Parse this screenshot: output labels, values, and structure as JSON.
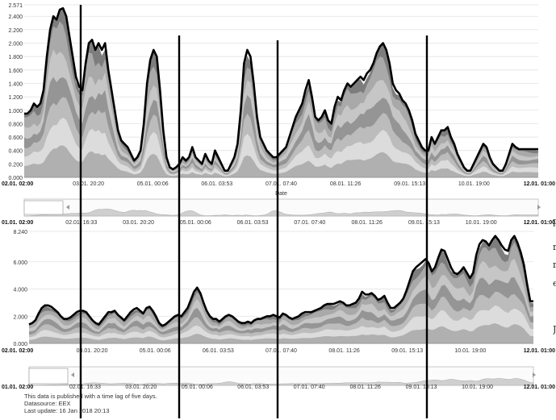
{
  "chart_data": [
    {
      "type": "area",
      "title": "",
      "xlabel": "Date",
      "ylabel": "",
      "ylim": [
        0,
        2.571
      ],
      "y_ticks": [
        "2.571",
        "2.400",
        "2.200",
        "2.000",
        "1.800",
        "1.600",
        "1.400",
        "1.200",
        "1.000",
        "0.800",
        "0.600",
        "0.400",
        "0.200",
        "0.000"
      ],
      "x_ticks": [
        "02.01. 02:00",
        "03.01. 20:20",
        "05.01. 00:06",
        "06.01. 03:53",
        "07.01. 07:40",
        "08.01. 11:26",
        "09.01. 15:13",
        "10.01. 19:00",
        "12.01. 01:00"
      ],
      "x_ticks_bold": [
        "02.01. 02:00",
        "12.01. 01:00"
      ],
      "navigator_ticks": [
        "01.01. 02:00",
        "02.01. 16:33",
        "03.01. 20:20",
        "05.01. 00:06",
        "06.01. 03:53",
        "07.01. 07:40",
        "08.01. 11:26",
        "09.01. 15:13",
        "10.01. 19:00",
        "12.01. 01:00"
      ],
      "x": [
        0,
        1,
        2,
        3,
        4,
        5,
        6,
        7,
        8,
        9,
        10,
        11,
        12,
        13,
        14,
        15,
        16,
        17,
        18,
        19,
        20,
        21,
        22,
        23,
        24,
        25,
        26,
        27,
        28,
        29,
        30,
        31,
        32,
        33,
        34,
        35,
        36,
        37,
        38,
        39,
        40,
        41,
        42,
        43,
        44,
        45,
        46,
        47,
        48,
        49,
        50,
        51,
        52,
        53,
        54,
        55,
        56,
        57,
        58,
        59,
        60,
        61,
        62,
        63,
        64,
        65,
        66,
        67,
        68,
        69,
        70,
        71,
        72,
        73,
        74,
        75,
        76,
        77,
        78,
        79,
        80,
        81,
        82,
        83,
        84,
        85,
        86,
        87,
        88,
        89,
        90,
        91,
        92,
        93,
        94,
        95,
        96,
        97,
        98,
        99,
        100,
        101,
        102,
        103,
        104,
        105,
        106,
        107,
        108,
        109,
        110,
        111,
        112,
        113,
        114,
        115,
        116,
        117,
        118,
        119,
        120,
        121,
        122,
        123,
        124,
        125,
        126,
        127,
        128,
        129,
        130,
        131,
        132,
        133,
        134,
        135,
        136,
        137,
        138,
        139,
        140,
        141,
        142,
        143,
        144,
        145,
        146,
        147,
        148,
        149,
        150,
        151,
        152,
        153,
        154,
        155,
        156,
        157,
        158,
        159
      ],
      "values": [
        0.95,
        0.95,
        1.0,
        1.1,
        1.05,
        1.1,
        1.3,
        1.8,
        2.2,
        2.4,
        2.35,
        2.5,
        2.52,
        2.4,
        2.1,
        1.8,
        1.5,
        1.35,
        1.3,
        1.7,
        2.0,
        2.05,
        1.9,
        2.0,
        1.9,
        2.0,
        1.6,
        1.3,
        1.0,
        0.7,
        0.55,
        0.5,
        0.45,
        0.35,
        0.25,
        0.3,
        0.4,
        0.8,
        1.4,
        1.75,
        1.9,
        1.8,
        1.3,
        0.7,
        0.3,
        0.15,
        0.12,
        0.15,
        0.2,
        0.3,
        0.25,
        0.3,
        0.45,
        0.3,
        0.25,
        0.2,
        0.35,
        0.25,
        0.2,
        0.4,
        0.3,
        0.2,
        0.1,
        0.1,
        0.2,
        0.3,
        0.5,
        1.0,
        1.7,
        1.9,
        1.8,
        1.4,
        0.9,
        0.6,
        0.5,
        0.4,
        0.35,
        0.3,
        0.3,
        0.35,
        0.4,
        0.45,
        0.6,
        0.75,
        0.9,
        1.0,
        1.1,
        1.3,
        1.45,
        1.2,
        0.9,
        0.85,
        0.9,
        1.0,
        0.85,
        0.8,
        1.05,
        1.2,
        1.15,
        1.3,
        1.4,
        1.35,
        1.4,
        1.45,
        1.5,
        1.45,
        1.55,
        1.6,
        1.7,
        1.85,
        1.95,
        2.0,
        1.9,
        1.7,
        1.4,
        1.3,
        1.25,
        1.15,
        1.1,
        1.0,
        0.85,
        0.65,
        0.55,
        0.45,
        0.4,
        0.4,
        0.6,
        0.5,
        0.6,
        0.7,
        0.7,
        0.75,
        0.6,
        0.5,
        0.35,
        0.25,
        0.15,
        0.1,
        0.1,
        0.2,
        0.3,
        0.4,
        0.5,
        0.45,
        0.3,
        0.2,
        0.15,
        0.1,
        0.1,
        0.2,
        0.35,
        0.5,
        0.45,
        0.42,
        0.42,
        0.42,
        0.42,
        0.42,
        0.42,
        0.42
      ],
      "markers": [
        "02.01. 16:33",
        "05.01. 00:06",
        "07.01. 07:40",
        "09.01. 15:13"
      ]
    },
    {
      "type": "area",
      "title": "",
      "xlabel": "",
      "ylabel": "",
      "ylim": [
        0,
        8.24
      ],
      "y_ticks": [
        "8.240",
        "6.000",
        "4.000",
        "2.000",
        "0.000"
      ],
      "x_ticks": [
        "02.01. 02:00",
        "03.01. 20:20",
        "05.01. 00:06",
        "06.01. 03:53",
        "07.01. 07:40",
        "08.01. 11:26",
        "09.01. 15:13",
        "10.01. 19:00",
        "12.01. 01:00"
      ],
      "x_ticks_bold": [
        "02.01. 02:00",
        "12.01. 01:00"
      ],
      "navigator_ticks": [
        "01.01. 02:00",
        "02.01. 16:33",
        "03.01. 20:20",
        "05.01. 00:06",
        "06.01. 03:53",
        "07.01. 07:40",
        "08.01. 11:26",
        "09.01. 15:13",
        "10.01. 19:00",
        "12.01. 01:00"
      ],
      "x": [
        0,
        1,
        2,
        3,
        4,
        5,
        6,
        7,
        8,
        9,
        10,
        11,
        12,
        13,
        14,
        15,
        16,
        17,
        18,
        19,
        20,
        21,
        22,
        23,
        24,
        25,
        26,
        27,
        28,
        29,
        30,
        31,
        32,
        33,
        34,
        35,
        36,
        37,
        38,
        39,
        40,
        41,
        42,
        43,
        44,
        45,
        46,
        47,
        48,
        49,
        50,
        51,
        52,
        53,
        54,
        55,
        56,
        57,
        58,
        59,
        60,
        61,
        62,
        63,
        64,
        65,
        66,
        67,
        68,
        69,
        70,
        71,
        72,
        73,
        74,
        75,
        76,
        77,
        78,
        79,
        80,
        81,
        82,
        83,
        84,
        85,
        86,
        87,
        88,
        89,
        90,
        91,
        92,
        93,
        94,
        95,
        96,
        97,
        98,
        99,
        100,
        101,
        102,
        103,
        104,
        105,
        106,
        107,
        108,
        109,
        110,
        111,
        112,
        113,
        114,
        115,
        116,
        117,
        118,
        119,
        120,
        121,
        122,
        123,
        124,
        125,
        126,
        127,
        128,
        129,
        130,
        131,
        132,
        133,
        134,
        135,
        136,
        137,
        138,
        139,
        140,
        141,
        142,
        143,
        144,
        145,
        146,
        147,
        148,
        149,
        150,
        151,
        152,
        153,
        154,
        155,
        156,
        157,
        158,
        159
      ],
      "values": [
        1.4,
        1.5,
        1.7,
        2.2,
        2.6,
        2.8,
        2.8,
        2.7,
        2.5,
        2.3,
        2.0,
        1.8,
        1.8,
        1.9,
        2.1,
        2.3,
        2.4,
        2.4,
        2.3,
        2.0,
        1.7,
        1.5,
        1.4,
        1.7,
        2.0,
        2.3,
        2.3,
        2.4,
        2.1,
        1.9,
        1.7,
        2.0,
        2.3,
        2.5,
        2.6,
        2.4,
        2.2,
        2.6,
        2.7,
        2.4,
        2.0,
        1.5,
        1.3,
        1.4,
        1.6,
        1.8,
        2.0,
        2.1,
        2.0,
        2.3,
        2.6,
        3.2,
        3.8,
        4.1,
        3.7,
        3.0,
        2.4,
        2.0,
        1.8,
        1.8,
        1.6,
        1.8,
        2.0,
        2.1,
        2.0,
        1.8,
        1.6,
        1.5,
        1.5,
        1.6,
        1.5,
        1.7,
        1.8,
        1.8,
        1.9,
        2.0,
        2.0,
        2.1,
        2.0,
        1.9,
        2.2,
        2.1,
        1.9,
        1.8,
        1.9,
        2.0,
        2.2,
        2.3,
        2.3,
        2.3,
        2.4,
        2.5,
        2.6,
        2.8,
        2.9,
        2.9,
        2.9,
        3.0,
        3.1,
        3.0,
        2.8,
        2.8,
        2.9,
        3.0,
        3.3,
        3.8,
        3.6,
        3.6,
        3.7,
        3.5,
        3.2,
        3.3,
        3.5,
        3.0,
        2.6,
        2.6,
        2.8,
        3.0,
        3.3,
        3.9,
        4.6,
        5.3,
        5.6,
        5.8,
        6.0,
        6.2,
        5.9,
        5.3,
        5.6,
        6.3,
        6.9,
        6.8,
        6.2,
        5.6,
        5.2,
        5.1,
        5.3,
        5.6,
        5.2,
        4.8,
        5.2,
        6.5,
        7.3,
        7.6,
        7.5,
        7.2,
        7.6,
        7.9,
        7.6,
        7.2,
        6.9,
        6.8,
        7.6,
        7.9,
        7.4,
        6.7,
        5.8,
        4.4,
        3.1,
        3.1
      ]
    }
  ],
  "notes": {
    "line1": "This data is published with a time lag of five days.",
    "line2": "Datasource: EEX",
    "line3": "Last update: 16 Jan 2018 20:13"
  },
  "edge_text": [
    "p",
    "r",
    "r",
    "e",
    "J"
  ]
}
